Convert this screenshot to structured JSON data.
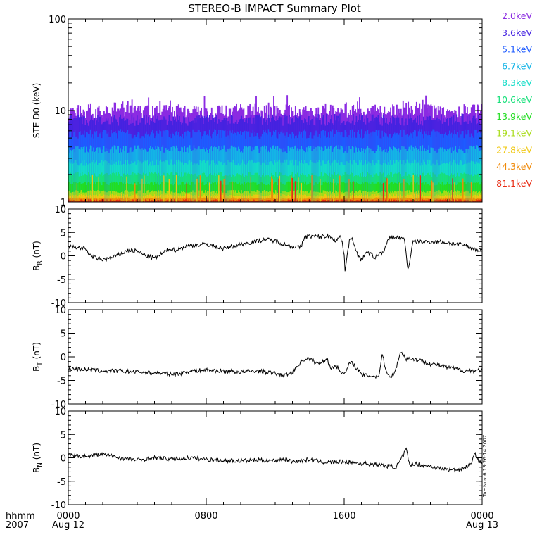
{
  "title": "STEREO-B IMPACT Summary Plot",
  "timestamp": "Tue Nov  6 13:26:14 2007",
  "x_axis": {
    "row1_label": "hhmm",
    "row2_label": "2007",
    "ticks": [
      {
        "hour": 0,
        "time": "0000",
        "date": "Aug 12"
      },
      {
        "hour": 8,
        "time": "0800",
        "date": ""
      },
      {
        "hour": 16,
        "time": "1600",
        "date": ""
      },
      {
        "hour": 24,
        "time": "0000",
        "date": "Aug 13"
      }
    ]
  },
  "colors": {
    "axes": "#000000",
    "trace": "#000000",
    "background": "#ffffff"
  },
  "chart_data": [
    {
      "type": "bar",
      "scale": "log",
      "ylabel": "STE D0 (keV)",
      "ylim": [
        1,
        100
      ],
      "yticks": [
        {
          "value": 1,
          "label": "1"
        },
        {
          "value": 10,
          "label": "10"
        },
        {
          "value": 100,
          "label": "100"
        }
      ],
      "xlim_hours": [
        0,
        24
      ],
      "samples": 400,
      "series": [
        {
          "name": "2.0keV",
          "color": "#8b2be2",
          "level": 10.0,
          "spread": 0.18
        },
        {
          "name": "3.6keV",
          "color": "#4422e0",
          "level": 8.0,
          "spread": 0.15
        },
        {
          "name": "5.1keV",
          "color": "#1e5bff",
          "level": 5.6,
          "spread": 0.12
        },
        {
          "name": "6.7keV",
          "color": "#14b4e6",
          "level": 3.8,
          "spread": 0.1
        },
        {
          "name": "8.3keV",
          "color": "#13dcc8",
          "level": 2.7,
          "spread": 0.08
        },
        {
          "name": "10.6keV",
          "color": "#16e07a",
          "level": 2.0,
          "spread": 0.06
        },
        {
          "name": "13.9keV",
          "color": "#22dd22",
          "level": 1.6,
          "spread": 0.05
        },
        {
          "name": "19.1keV",
          "color": "#a8dc18",
          "level": 1.3,
          "spread": 0.04
        },
        {
          "name": "27.8keV",
          "color": "#f0c814",
          "level": 1.18,
          "spread": 0.03
        },
        {
          "name": "44.3keV",
          "color": "#f08a0a",
          "level": 1.1,
          "spread": 0.02
        },
        {
          "name": "81.1keV",
          "color": "#e82a12",
          "level": 1.05,
          "spread": 0.02
        }
      ]
    },
    {
      "type": "line",
      "ylabel": "B",
      "ylabel_sub": "R",
      "ylabel_unit": "(nT)",
      "ylim": [
        -10,
        10
      ],
      "yticks": [
        {
          "value": 10,
          "label": "10"
        },
        {
          "value": 5,
          "label": "5"
        },
        {
          "value": 0,
          "label": "0"
        },
        {
          "value": -5,
          "label": "-5"
        },
        {
          "value": -10,
          "label": "-10"
        }
      ],
      "x_hours": [
        0,
        0.5,
        1,
        1.3,
        1.6,
        2,
        2.5,
        3,
        3.5,
        4,
        4.5,
        5,
        5.5,
        5.9,
        6.2,
        6.8,
        7.5,
        8,
        8.5,
        9,
        9.5,
        10,
        10.5,
        11,
        11.5,
        12,
        12.5,
        13,
        13.5,
        13.7,
        14,
        14.5,
        15,
        15.3,
        15.5,
        15.8,
        16,
        16.05,
        16.3,
        16.5,
        16.8,
        17,
        17.2,
        17.5,
        17.8,
        18,
        18.3,
        18.6,
        18.9,
        19.2,
        19.5,
        19.7,
        20,
        20.5,
        21,
        21.5,
        22,
        22.5,
        23,
        23.5,
        24
      ],
      "values": [
        2,
        1.8,
        1.5,
        0,
        -0.5,
        -0.8,
        -0.5,
        0.3,
        1.2,
        1,
        0,
        -0.5,
        0.6,
        1.5,
        1.2,
        2,
        2.3,
        2.5,
        2,
        1.5,
        2,
        2.5,
        2.8,
        3.2,
        3.5,
        3.2,
        2.5,
        2,
        1.8,
        4,
        4.2,
        4.1,
        4.2,
        4,
        3.2,
        4.2,
        0.5,
        -3,
        3.2,
        3.5,
        0,
        -1,
        0.5,
        0.5,
        -0.5,
        0.5,
        0.8,
        3.8,
        4,
        3.8,
        3.5,
        -3,
        3,
        3,
        3,
        3,
        2.8,
        2.5,
        2.2,
        1.5,
        1.2
      ]
    },
    {
      "type": "line",
      "ylabel": "B",
      "ylabel_sub": "T",
      "ylabel_unit": "(nT)",
      "ylim": [
        -10,
        10
      ],
      "yticks": [
        {
          "value": 10,
          "label": "10"
        },
        {
          "value": 5,
          "label": "5"
        },
        {
          "value": 0,
          "label": "0"
        },
        {
          "value": -5,
          "label": "-5"
        },
        {
          "value": -10,
          "label": "-10"
        }
      ],
      "x_hours": [
        0,
        1,
        2,
        3,
        4,
        5,
        6,
        6.5,
        7,
        8,
        9,
        10,
        11,
        12,
        12.5,
        13,
        13.5,
        13.8,
        14,
        14.5,
        15,
        15.2,
        15.5,
        16,
        16.3,
        16.5,
        17,
        18,
        18.2,
        18.5,
        18.8,
        19,
        19.3,
        19.6,
        19.8,
        20,
        20.5,
        21,
        21.5,
        22,
        22.5,
        23,
        24
      ],
      "values": [
        -2.5,
        -2.7,
        -3,
        -3,
        -3.2,
        -3.4,
        -3.7,
        -3.5,
        -3,
        -2.8,
        -3,
        -3.2,
        -3,
        -3.5,
        -4,
        -3.2,
        -1,
        -0.3,
        -0.5,
        -1.5,
        -0.3,
        -2.5,
        -1.8,
        -3.8,
        -1.5,
        -1.3,
        -3.8,
        -4.2,
        0.5,
        -3.8,
        -4,
        -2.5,
        1.2,
        -0.5,
        -0.3,
        -0.5,
        -0.8,
        -1.5,
        -1.8,
        -2.3,
        -2.5,
        -3,
        -2.8
      ]
    },
    {
      "type": "line",
      "ylabel": "B",
      "ylabel_sub": "N",
      "ylabel_unit": "(nT)",
      "ylim": [
        -10,
        10
      ],
      "yticks": [
        {
          "value": 10,
          "label": "10"
        },
        {
          "value": 5,
          "label": "5"
        },
        {
          "value": 0,
          "label": "0"
        },
        {
          "value": -5,
          "label": "-5"
        },
        {
          "value": -10,
          "label": "-10"
        }
      ],
      "x_hours": [
        0,
        1,
        2,
        3,
        4,
        5,
        6,
        7,
        8,
        9,
        10,
        11,
        12,
        12.5,
        13,
        14,
        15,
        16,
        17,
        18,
        19,
        19.2,
        19.6,
        19.8,
        20,
        20.5,
        21,
        21.5,
        22,
        22.5,
        23,
        23.3,
        23.6,
        23.8,
        24
      ],
      "values": [
        0.5,
        0.3,
        0.8,
        0,
        -0.5,
        0,
        -0.3,
        0,
        -0.3,
        -0.6,
        -0.6,
        -0.5,
        -0.6,
        -0.2,
        -0.8,
        -0.4,
        -1,
        -0.8,
        -1.2,
        -1.5,
        -2,
        -1,
        1.8,
        -1.8,
        -1.2,
        -1.5,
        -1.8,
        -2.2,
        -2.5,
        -2.6,
        -2,
        -1.5,
        0.8,
        -0.5,
        -1.3
      ]
    }
  ]
}
